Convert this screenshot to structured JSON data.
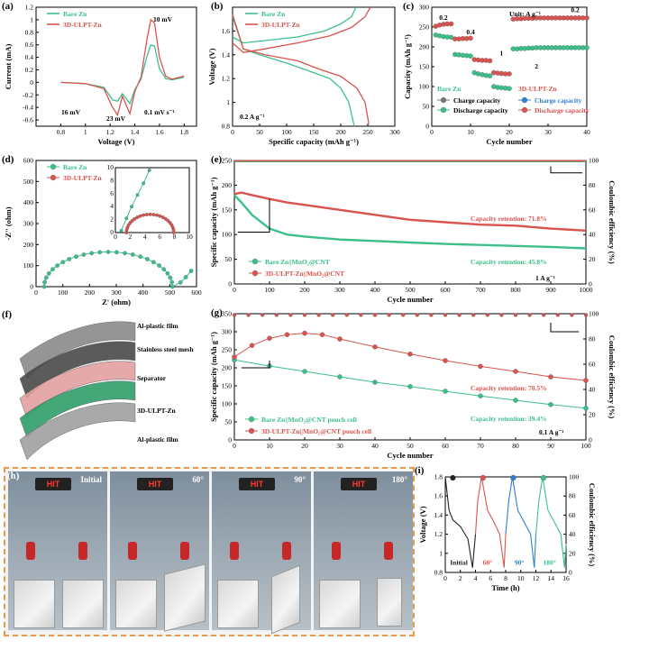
{
  "panels": {
    "a": {
      "label": "(a)",
      "xlabel": "Voltage (V)",
      "ylabel": "Current (mA)",
      "xlim": [
        0.6,
        1.9
      ],
      "ylim": [
        -0.7,
        1.2
      ],
      "xticks": [
        0.8,
        1.0,
        1.2,
        1.4,
        1.6,
        1.8
      ],
      "yticks": [
        -0.6,
        -0.4,
        -0.2,
        0.0,
        0.2,
        0.4,
        0.6,
        0.8,
        1.0,
        1.2
      ],
      "legend": [
        "Bare Zn",
        "3D-ULPT-Zn"
      ],
      "annotations": [
        "10 mV",
        "16 mV",
        "23 mV",
        "0.1 mV s⁻¹"
      ]
    },
    "b": {
      "label": "(b)",
      "xlabel": "Specific capacity (mAh g⁻¹)",
      "ylabel": "Voltage (V)",
      "xlim": [
        0,
        300
      ],
      "ylim": [
        0.8,
        1.8
      ],
      "xticks": [
        0,
        50,
        100,
        150,
        200,
        250,
        300
      ],
      "yticks": [
        0.8,
        1.0,
        1.2,
        1.4,
        1.6
      ],
      "legend": [
        "Bare Zn",
        "3D-ULPT-Zn"
      ],
      "annotation": "0.2 A g⁻¹"
    },
    "c": {
      "label": "(c)",
      "xlabel": "Cycle number",
      "ylabel": "Capacity (mAh g⁻¹)",
      "xlim": [
        0,
        40
      ],
      "ylim": [
        0,
        300
      ],
      "xticks": [
        0,
        10,
        20,
        30,
        40
      ],
      "yticks": [
        0,
        50,
        100,
        150,
        200,
        250,
        300
      ],
      "unit": "Unit: A g⁻¹",
      "rates": [
        "0.2",
        "0.4",
        "1",
        "2",
        "0.2"
      ],
      "legend_left_title": "Bare Zn",
      "legend_right_title": "3D-ULPT-Zn",
      "legend_items": [
        "Charge capacity",
        "Discharge capacity",
        "Charge capacity",
        "Discharge capacity"
      ]
    },
    "d": {
      "label": "(d)",
      "xlabel": "Z' (ohm)",
      "ylabel": "-Z'' (ohm)",
      "xlim": [
        0,
        600
      ],
      "ylim": [
        0,
        600
      ],
      "xticks": [
        0,
        100,
        200,
        300,
        400,
        500,
        600
      ],
      "yticks": [
        0,
        100,
        200,
        300,
        400,
        500,
        600
      ],
      "legend": [
        "Bare Zn",
        "3D-ULPT-Zn"
      ],
      "inset_xticks": [
        0,
        2,
        4,
        6,
        8,
        10
      ],
      "inset_yticks": [
        0,
        2,
        4,
        6,
        8,
        10
      ]
    },
    "e": {
      "label": "(e)",
      "xlabel": "Cycle number",
      "ylabel": "Specific capacity (mAh g⁻¹)",
      "y2label": "Coulombic efficiency (%)",
      "xlim": [
        0,
        1000
      ],
      "ylim": [
        0,
        250
      ],
      "y2lim": [
        0,
        100
      ],
      "xticks": [
        0,
        100,
        200,
        300,
        400,
        500,
        600,
        700,
        800,
        900,
        1000
      ],
      "yticks": [
        0,
        50,
        100,
        150,
        200,
        250
      ],
      "y2ticks": [
        0,
        20,
        40,
        60,
        80,
        100
      ],
      "legend": [
        "Bare Zn||MnO₂@CNT",
        "3D-ULPT-Zn||MnO₂@CNT"
      ],
      "annotations": [
        "Capacity retention: 71.8%",
        "Capacity retention: 45.8%",
        "1 A g⁻¹"
      ]
    },
    "f": {
      "label": "(f)",
      "layers": [
        "Al-plastic film",
        "Stainless steel mesh",
        "Separator",
        "3D-ULPT-Zn",
        "Al-plastic film"
      ]
    },
    "g": {
      "label": "(g)",
      "xlabel": "Cycle number",
      "ylabel": "Specific capacity (mAh g⁻¹)",
      "y2label": "Coulombic efficiency (%)",
      "xlim": [
        0,
        100
      ],
      "ylim": [
        0,
        350
      ],
      "y2lim": [
        0,
        100
      ],
      "xticks": [
        0,
        10,
        20,
        30,
        40,
        50,
        60,
        70,
        80,
        90,
        100
      ],
      "yticks": [
        0,
        50,
        100,
        150,
        200,
        250,
        300,
        350
      ],
      "y2ticks": [
        0,
        20,
        40,
        60,
        80,
        100
      ],
      "legend": [
        "Bare Zn||MnO₂@CNT pouch cell",
        "3D-ULPT-Zn||MnO₂@CNT pouch cell"
      ],
      "annotations": [
        "Capacity retention: 70.5%",
        "Capacity retention: 39.4%",
        "0.1 A g⁻¹"
      ]
    },
    "h": {
      "label": "(h)",
      "display_text": "HIT",
      "photos": [
        "Initial",
        "60°",
        "90°",
        "180°"
      ]
    },
    "i": {
      "label": "(i)",
      "xlabel": "Time (h)",
      "ylabel": "Voltage (V)",
      "y2label": "Coulombic efficiency (%)",
      "xlim": [
        0,
        16
      ],
      "ylim": [
        0.8,
        1.8
      ],
      "y2lim": [
        0,
        100
      ],
      "xticks": [
        0,
        2,
        4,
        6,
        8,
        10,
        12,
        14,
        16
      ],
      "yticks": [
        0.8,
        1.0,
        1.2,
        1.4,
        1.6,
        1.8
      ],
      "y2ticks": [
        0,
        20,
        40,
        60,
        80,
        100
      ],
      "segment_labels": [
        "Initial",
        "60°",
        "90°",
        "180°"
      ]
    }
  },
  "colors": {
    "bare": "#3cc08a",
    "ulpt": "#d9534f",
    "blue": "#2f7fd1",
    "black": "#222222"
  },
  "chart_data": [
    {
      "panel": "a",
      "type": "line",
      "series": [
        {
          "name": "Bare Zn",
          "x": [
            0.8,
            1.0,
            1.15,
            1.22,
            1.26,
            1.3,
            1.36,
            1.4,
            1.45,
            1.5,
            1.53,
            1.56,
            1.6,
            1.65,
            1.7,
            1.8
          ],
          "y": [
            0.0,
            -0.02,
            -0.08,
            -0.28,
            -0.3,
            -0.18,
            -0.34,
            -0.12,
            0.05,
            0.42,
            0.6,
            0.58,
            0.22,
            0.06,
            0.04,
            0.08
          ]
        },
        {
          "name": "3D-ULPT-Zn",
          "x": [
            0.8,
            1.0,
            1.15,
            1.22,
            1.26,
            1.3,
            1.36,
            1.4,
            1.45,
            1.5,
            1.53,
            1.56,
            1.6,
            1.65,
            1.7,
            1.8
          ],
          "y": [
            0.0,
            -0.02,
            -0.1,
            -0.4,
            -0.52,
            -0.22,
            -0.5,
            -0.15,
            0.08,
            0.7,
            1.0,
            0.95,
            0.4,
            0.1,
            0.05,
            0.1
          ]
        }
      ]
    },
    {
      "panel": "b",
      "type": "line",
      "series": [
        {
          "name": "Bare Zn discharge",
          "x": [
            0,
            20,
            50,
            100,
            150,
            180,
            200,
            215,
            225
          ],
          "y": [
            1.72,
            1.45,
            1.4,
            1.33,
            1.25,
            1.2,
            1.12,
            1.0,
            0.8
          ]
        },
        {
          "name": "Bare Zn charge",
          "x": [
            0,
            20,
            60,
            120,
            170,
            200,
            220,
            228
          ],
          "y": [
            1.55,
            1.5,
            1.52,
            1.55,
            1.6,
            1.66,
            1.72,
            1.8
          ]
        },
        {
          "name": "3D-ULPT-Zn discharge",
          "x": [
            0,
            20,
            60,
            120,
            160,
            200,
            230,
            245,
            252
          ],
          "y": [
            1.74,
            1.45,
            1.4,
            1.35,
            1.28,
            1.22,
            1.12,
            1.0,
            0.82
          ]
        },
        {
          "name": "3D-ULPT-Zn charge",
          "x": [
            0,
            20,
            60,
            120,
            180,
            220,
            245,
            255
          ],
          "y": [
            1.5,
            1.42,
            1.45,
            1.5,
            1.56,
            1.63,
            1.72,
            1.8
          ]
        }
      ]
    },
    {
      "panel": "c",
      "type": "scatter",
      "series": [
        {
          "name": "Bare Zn Charge capacity",
          "x": [
            1,
            2,
            3,
            4,
            5,
            6,
            7,
            8,
            9,
            10,
            11,
            12,
            13,
            14,
            15,
            16,
            17,
            18,
            19,
            20,
            21,
            22,
            23,
            24,
            25,
            26,
            27,
            28,
            29,
            30,
            31,
            32,
            33,
            34,
            35,
            36,
            37,
            38,
            39,
            40
          ],
          "y": [
            230,
            228,
            226,
            225,
            224,
            181,
            180,
            179,
            178,
            177,
            135,
            132,
            130,
            128,
            127,
            100,
            98,
            97,
            96,
            95,
            195,
            195,
            196,
            196,
            197,
            197,
            198,
            198,
            198,
            198,
            198,
            198,
            198,
            198,
            198,
            198,
            198,
            198,
            198,
            198
          ]
        },
        {
          "name": "3D-ULPT-Zn Discharge capacity",
          "x": [
            1,
            2,
            3,
            4,
            5,
            6,
            7,
            8,
            9,
            10,
            11,
            12,
            13,
            14,
            15,
            16,
            17,
            18,
            19,
            20,
            21,
            22,
            23,
            24,
            25,
            26,
            27,
            28,
            29,
            30,
            31,
            32,
            33,
            34,
            35,
            36,
            37,
            38,
            39,
            40
          ],
          "y": [
            252,
            255,
            257,
            258,
            258,
            220,
            220,
            221,
            221,
            222,
            168,
            167,
            166,
            166,
            165,
            135,
            134,
            133,
            132,
            132,
            270,
            271,
            271,
            272,
            272,
            272,
            273,
            273,
            273,
            273,
            273,
            273,
            273,
            273,
            273,
            273,
            273,
            273,
            273,
            273
          ]
        }
      ]
    },
    {
      "panel": "d",
      "type": "scatter",
      "series": [
        {
          "name": "Bare Zn",
          "description": "semicircle",
          "center": 270,
          "radius": 240,
          "tail": [
            [
              540,
              20
            ],
            [
              560,
              45
            ],
            [
              580,
              75
            ]
          ]
        },
        {
          "name": "3D-ULPT-Zn",
          "description": "small semicircle in inset",
          "center": 4.7,
          "radius": 3.2
        }
      ]
    },
    {
      "panel": "e",
      "type": "line",
      "series": [
        {
          "name": "Bare Zn||MnO₂@CNT",
          "x": [
            0,
            20,
            50,
            100,
            150,
            200,
            300,
            400,
            500,
            600,
            700,
            800,
            900,
            1000
          ],
          "y": [
            180,
            165,
            140,
            112,
            100,
            96,
            90,
            87,
            84,
            81,
            79,
            77,
            75,
            72
          ]
        },
        {
          "name": "3D-ULPT-Zn||MnO₂@CNT",
          "x": [
            0,
            20,
            50,
            100,
            150,
            200,
            300,
            400,
            500,
            600,
            700,
            800,
            900,
            1000
          ],
          "y": [
            182,
            185,
            180,
            172,
            165,
            160,
            150,
            140,
            130,
            125,
            120,
            118,
            112,
            108
          ]
        },
        {
          "name": "CE",
          "x": [
            0,
            1000
          ],
          "y2": [
            99.5,
            99.5
          ]
        }
      ]
    },
    {
      "panel": "g",
      "type": "line",
      "series": [
        {
          "name": "Bare Zn||MnO₂@CNT pouch cell",
          "x": [
            0,
            10,
            20,
            30,
            40,
            50,
            60,
            70,
            80,
            90,
            100
          ],
          "y": [
            222,
            205,
            190,
            175,
            160,
            148,
            135,
            122,
            110,
            98,
            88
          ]
        },
        {
          "name": "3D-ULPT-Zn||MnO₂@CNT pouch cell",
          "x": [
            0,
            5,
            10,
            15,
            20,
            25,
            30,
            40,
            50,
            60,
            70,
            80,
            90,
            100
          ],
          "y": [
            230,
            262,
            282,
            292,
            296,
            292,
            280,
            258,
            238,
            220,
            204,
            190,
            175,
            165
          ]
        },
        {
          "name": "CE",
          "x": [
            0,
            100
          ],
          "y2": [
            99,
            99
          ]
        }
      ]
    },
    {
      "panel": "i",
      "type": "line",
      "series": [
        {
          "name": "Initial",
          "x": [
            0,
            0.5,
            1,
            2,
            3,
            3.6,
            4
          ],
          "y": [
            1.8,
            1.45,
            1.35,
            1.28,
            1.15,
            0.85,
            1.2
          ]
        },
        {
          "name": "60°",
          "x": [
            4,
            4.3,
            4.8,
            5.6,
            6.5,
            7.2,
            7.8,
            8
          ],
          "y": [
            1.2,
            1.55,
            1.8,
            1.45,
            1.32,
            1.2,
            0.85,
            1.2
          ]
        },
        {
          "name": "90°",
          "x": [
            8,
            8.4,
            8.9,
            9.6,
            10.5,
            11.3,
            11.8,
            12
          ],
          "y": [
            1.2,
            1.55,
            1.8,
            1.45,
            1.32,
            1.2,
            0.85,
            1.2
          ]
        },
        {
          "name": "180°",
          "x": [
            12,
            12.4,
            12.9,
            13.6,
            14.5,
            15.3,
            15.8,
            16
          ],
          "y": [
            1.2,
            1.55,
            1.8,
            1.45,
            1.32,
            1.2,
            0.85,
            1.1
          ]
        }
      ]
    }
  ]
}
